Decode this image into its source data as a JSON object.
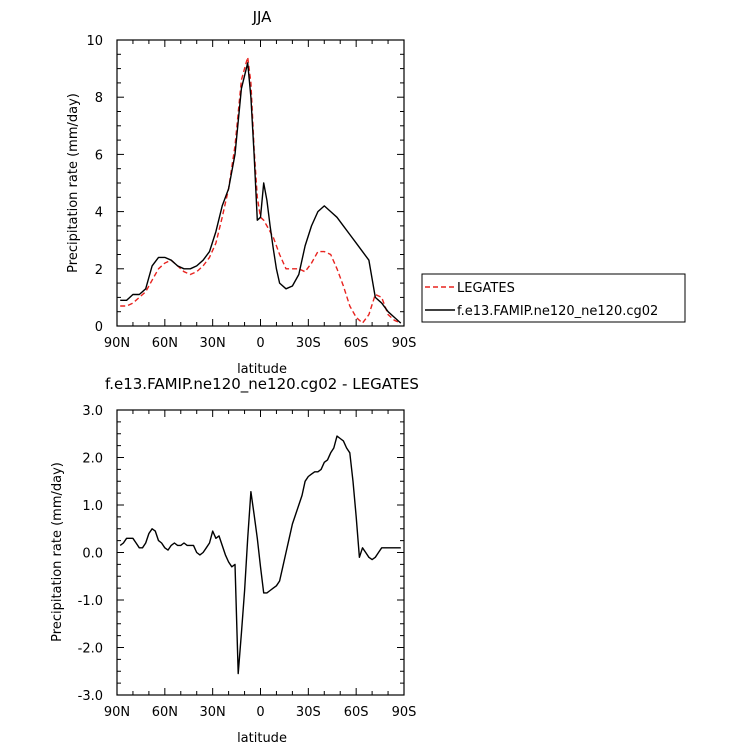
{
  "chart_data": [
    {
      "type": "line",
      "title": "JJA",
      "xlabel": "latitude",
      "ylabel": "Precipitation rate (mm/day)",
      "xlim": [
        90,
        -90
      ],
      "ylim": [
        0,
        10
      ],
      "xticks": [
        {
          "value": 90,
          "label": "90N"
        },
        {
          "value": 60,
          "label": "60N"
        },
        {
          "value": 30,
          "label": "30N"
        },
        {
          "value": 0,
          "label": "0"
        },
        {
          "value": -30,
          "label": "30S"
        },
        {
          "value": -60,
          "label": "60S"
        },
        {
          "value": -90,
          "label": "90S"
        }
      ],
      "yticks": [
        {
          "value": 0,
          "label": "0"
        },
        {
          "value": 2,
          "label": "2"
        },
        {
          "value": 4,
          "label": "4"
        },
        {
          "value": 6,
          "label": "6"
        },
        {
          "value": 8,
          "label": "8"
        },
        {
          "value": 10,
          "label": "10"
        }
      ],
      "legend_position": "right",
      "series": [
        {
          "name": "LEGATES",
          "color": "#e8231f",
          "dash": "dashed",
          "x": [
            88,
            84,
            80,
            76,
            72,
            68,
            64,
            60,
            56,
            52,
            48,
            44,
            40,
            36,
            32,
            28,
            24,
            20,
            16,
            12,
            8,
            6,
            4,
            2,
            0,
            -2,
            -4,
            -8,
            -12,
            -16,
            -20,
            -24,
            -28,
            -32,
            -36,
            -40,
            -44,
            -48,
            -52,
            -56,
            -60,
            -64,
            -68,
            -72,
            -76,
            -80,
            -84,
            -88
          ],
          "values": [
            0.7,
            0.7,
            0.8,
            1.0,
            1.2,
            1.6,
            2.0,
            2.2,
            2.3,
            2.1,
            1.9,
            1.8,
            1.9,
            2.1,
            2.4,
            2.9,
            3.8,
            4.8,
            6.3,
            8.6,
            9.4,
            8.5,
            6.2,
            4.5,
            3.8,
            3.7,
            3.5,
            3.1,
            2.5,
            2.0,
            2.0,
            2.0,
            1.9,
            2.2,
            2.6,
            2.6,
            2.5,
            2.0,
            1.4,
            0.7,
            0.3,
            0.1,
            0.4,
            1.1,
            1.0,
            0.4,
            0.2,
            0.1
          ]
        },
        {
          "name": "f.e13.FAMIP.ne120_ne120.cg02",
          "color": "#000000",
          "dash": "solid",
          "x": [
            88,
            84,
            80,
            76,
            72,
            68,
            64,
            60,
            56,
            52,
            48,
            44,
            40,
            36,
            32,
            28,
            24,
            20,
            16,
            12,
            8,
            6,
            4,
            2,
            0,
            -2,
            -4,
            -6,
            -8,
            -10,
            -12,
            -16,
            -20,
            -24,
            -28,
            -32,
            -36,
            -40,
            -44,
            -48,
            -52,
            -56,
            -60,
            -64,
            -68,
            -72,
            -76,
            -80,
            -84,
            -88
          ],
          "values": [
            0.9,
            0.9,
            1.1,
            1.1,
            1.3,
            2.1,
            2.4,
            2.4,
            2.3,
            2.1,
            2.0,
            2.0,
            2.1,
            2.3,
            2.6,
            3.3,
            4.2,
            4.8,
            6.0,
            8.3,
            9.2,
            8.0,
            6.0,
            3.7,
            3.8,
            5.0,
            4.4,
            3.5,
            2.7,
            2.0,
            1.5,
            1.3,
            1.4,
            1.8,
            2.8,
            3.5,
            4.0,
            4.2,
            4.0,
            3.8,
            3.5,
            3.2,
            2.9,
            2.6,
            2.3,
            1.0,
            0.8,
            0.5,
            0.3,
            0.1
          ]
        }
      ]
    },
    {
      "type": "line",
      "title": "f.e13.FAMIP.ne120_ne120.cg02 - LEGATES",
      "xlabel": "latitude",
      "ylabel": "Precipitation rate (mm/day)",
      "xlim": [
        90,
        -90
      ],
      "ylim": [
        -3,
        3
      ],
      "xticks": [
        {
          "value": 90,
          "label": "90N"
        },
        {
          "value": 60,
          "label": "60N"
        },
        {
          "value": 30,
          "label": "30N"
        },
        {
          "value": 0,
          "label": "0"
        },
        {
          "value": -30,
          "label": "30S"
        },
        {
          "value": -60,
          "label": "60S"
        },
        {
          "value": -90,
          "label": "90S"
        }
      ],
      "yticks": [
        {
          "value": -3,
          "label": "-3.0"
        },
        {
          "value": -2,
          "label": "-2.0"
        },
        {
          "value": -1,
          "label": "-1.0"
        },
        {
          "value": 0,
          "label": "0.0"
        },
        {
          "value": 1,
          "label": "1.0"
        },
        {
          "value": 2,
          "label": "2.0"
        },
        {
          "value": 3,
          "label": "3.0"
        }
      ],
      "series": [
        {
          "color": "#000000",
          "dash": "solid",
          "x": [
            88,
            86,
            84,
            82,
            80,
            78,
            76,
            74,
            72,
            70,
            68,
            66,
            64,
            62,
            60,
            58,
            56,
            54,
            52,
            50,
            48,
            46,
            44,
            42,
            40,
            38,
            36,
            34,
            32,
            30,
            28,
            26,
            24,
            22,
            20,
            18,
            16,
            14,
            12,
            10,
            8,
            6,
            4,
            2,
            0,
            -2,
            -4,
            -6,
            -8,
            -10,
            -12,
            -14,
            -16,
            -18,
            -20,
            -22,
            -24,
            -26,
            -28,
            -30,
            -32,
            -34,
            -36,
            -38,
            -40,
            -42,
            -44,
            -46,
            -48,
            -50,
            -52,
            -54,
            -56,
            -58,
            -60,
            -62,
            -64,
            -66,
            -68,
            -70,
            -72,
            -74,
            -76,
            -78,
            -80,
            -82,
            -84,
            -86,
            -88
          ],
          "values": [
            0.15,
            0.2,
            0.3,
            0.3,
            0.3,
            0.2,
            0.1,
            0.1,
            0.2,
            0.4,
            0.5,
            0.45,
            0.25,
            0.2,
            0.1,
            0.05,
            0.15,
            0.2,
            0.15,
            0.15,
            0.2,
            0.15,
            0.15,
            0.15,
            0.0,
            -0.05,
            0.0,
            0.1,
            0.2,
            0.45,
            0.3,
            0.35,
            0.15,
            -0.05,
            -0.2,
            -0.3,
            -0.25,
            -2.55,
            -1.7,
            -0.8,
            0.3,
            1.28,
            0.8,
            0.3,
            -0.3,
            -0.85,
            -0.85,
            -0.8,
            -0.75,
            -0.7,
            -0.6,
            -0.3,
            0.0,
            0.3,
            0.6,
            0.8,
            1.0,
            1.2,
            1.5,
            1.6,
            1.65,
            1.7,
            1.7,
            1.75,
            1.9,
            1.95,
            2.1,
            2.2,
            2.45,
            2.4,
            2.35,
            2.2,
            2.1,
            1.5,
            0.75,
            -0.1,
            0.1,
            0.0,
            -0.1,
            -0.15,
            -0.1,
            0.0,
            0.1,
            0.1,
            0.1,
            0.1,
            0.1,
            0.1,
            0.1
          ]
        }
      ]
    }
  ]
}
